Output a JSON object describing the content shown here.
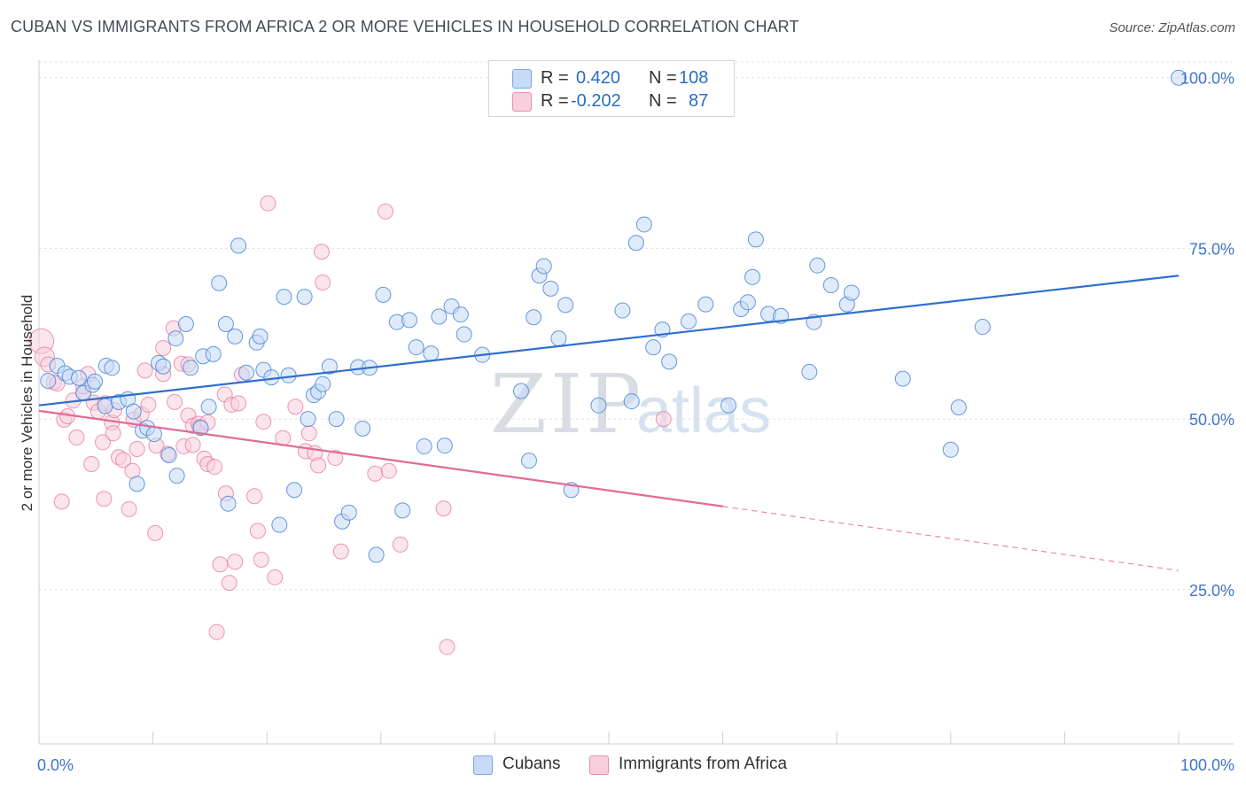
{
  "header": {
    "title": "CUBAN VS IMMIGRANTS FROM AFRICA 2 OR MORE VEHICLES IN HOUSEHOLD CORRELATION CHART",
    "source": "Source: ZipAtlas.com"
  },
  "legend_box": {
    "rows": [
      {
        "r_label": "R =",
        "r_value": "0.420",
        "n_label": "N =",
        "n_value": "108"
      },
      {
        "r_label": "R =",
        "r_value": "-0.202",
        "n_label": "N =",
        "n_value": "87"
      }
    ]
  },
  "bottom_legend": {
    "series1": "Cubans",
    "series2": "Immigrants from Africa"
  },
  "watermark": {
    "zip": "ZIP",
    "atlas": "atlas"
  },
  "colors": {
    "blue": "#4a86d8",
    "blue_fill": "#c7daf6",
    "pink": "#e8739c",
    "pink_fill": "#f8cfdd",
    "trend_blue": "#2e6fce",
    "trend_pink": "#e26a97",
    "axis_text": "#3f74c8"
  },
  "chart_data": {
    "type": "scatter",
    "title": "CUBAN VS IMMIGRANTS FROM AFRICA 2 OR MORE VEHICLES IN HOUSEHOLD CORRELATION CHART",
    "xlabel": "",
    "ylabel": "2 or more Vehicles in Household",
    "xlim": [
      0,
      100
    ],
    "ylim": [
      2.4,
      102.3
    ],
    "x_tick_labels": [
      "0.0%",
      "100.0%"
    ],
    "y_ticks": [
      25,
      50,
      75,
      100
    ],
    "y_tick_labels": [
      "25.0%",
      "50.0%",
      "75.0%",
      "100.0%"
    ],
    "grid": "horizontal dashed",
    "legend": "top-center",
    "series": [
      {
        "name": "Cubans",
        "R": 0.42,
        "N": 108,
        "trend": {
          "x": [
            0,
            100
          ],
          "y": [
            52.0,
            71.0
          ]
        },
        "points": [
          [
            0.8,
            55.6
          ],
          [
            1.6,
            57.8
          ],
          [
            2.3,
            56.7
          ],
          [
            2.7,
            56.2
          ],
          [
            3.5,
            56.0
          ],
          [
            3.9,
            53.8
          ],
          [
            4.7,
            55.0
          ],
          [
            4.9,
            55.5
          ],
          [
            5.8,
            51.9
          ],
          [
            5.9,
            57.8
          ],
          [
            6.4,
            57.5
          ],
          [
            7.0,
            52.5
          ],
          [
            7.8,
            52.9
          ],
          [
            8.3,
            51.1
          ],
          [
            8.6,
            40.5
          ],
          [
            9.1,
            48.3
          ],
          [
            9.5,
            48.7
          ],
          [
            10.1,
            47.8
          ],
          [
            10.5,
            58.2
          ],
          [
            10.9,
            57.7
          ],
          [
            11.4,
            44.7
          ],
          [
            12.0,
            61.8
          ],
          [
            12.1,
            41.7
          ],
          [
            12.9,
            63.9
          ],
          [
            13.3,
            57.5
          ],
          [
            14.2,
            48.7
          ],
          [
            14.4,
            59.2
          ],
          [
            14.9,
            51.8
          ],
          [
            15.3,
            59.5
          ],
          [
            15.8,
            69.9
          ],
          [
            16.4,
            63.9
          ],
          [
            16.6,
            37.6
          ],
          [
            17.2,
            62.1
          ],
          [
            17.5,
            75.4
          ],
          [
            18.2,
            56.8
          ],
          [
            19.1,
            61.2
          ],
          [
            19.4,
            62.1
          ],
          [
            19.7,
            57.2
          ],
          [
            20.4,
            56.1
          ],
          [
            21.1,
            34.5
          ],
          [
            21.5,
            67.9
          ],
          [
            21.9,
            56.4
          ],
          [
            22.4,
            39.6
          ],
          [
            23.3,
            67.9
          ],
          [
            23.6,
            50.0
          ],
          [
            24.1,
            53.5
          ],
          [
            24.5,
            54.0
          ],
          [
            24.9,
            55.1
          ],
          [
            25.5,
            57.7
          ],
          [
            26.1,
            50.0
          ],
          [
            26.6,
            35.0
          ],
          [
            27.2,
            36.3
          ],
          [
            28.0,
            57.6
          ],
          [
            28.4,
            48.6
          ],
          [
            29.0,
            57.5
          ],
          [
            29.6,
            30.1
          ],
          [
            30.2,
            68.2
          ],
          [
            31.4,
            64.2
          ],
          [
            31.9,
            36.6
          ],
          [
            32.5,
            64.5
          ],
          [
            33.1,
            60.5
          ],
          [
            33.8,
            46.0
          ],
          [
            34.4,
            59.6
          ],
          [
            35.1,
            65.0
          ],
          [
            35.6,
            46.1
          ],
          [
            36.2,
            66.5
          ],
          [
            37.0,
            65.3
          ],
          [
            37.3,
            62.4
          ],
          [
            38.9,
            59.4
          ],
          [
            42.3,
            54.1
          ],
          [
            43.0,
            43.9
          ],
          [
            43.4,
            64.9
          ],
          [
            43.9,
            71.0
          ],
          [
            44.3,
            72.4
          ],
          [
            44.9,
            69.1
          ],
          [
            45.6,
            61.8
          ],
          [
            46.2,
            66.7
          ],
          [
            46.7,
            39.6
          ],
          [
            49.1,
            52.0
          ],
          [
            51.2,
            65.9
          ],
          [
            52.0,
            52.6
          ],
          [
            52.4,
            75.8
          ],
          [
            53.1,
            78.5
          ],
          [
            53.9,
            60.5
          ],
          [
            54.7,
            63.1
          ],
          [
            55.3,
            58.4
          ],
          [
            57.0,
            64.3
          ],
          [
            58.5,
            66.8
          ],
          [
            60.5,
            52.0
          ],
          [
            61.6,
            66.1
          ],
          [
            62.2,
            67.1
          ],
          [
            62.6,
            70.8
          ],
          [
            62.9,
            76.3
          ],
          [
            64.0,
            65.4
          ],
          [
            65.1,
            65.1
          ],
          [
            67.6,
            56.9
          ],
          [
            68.0,
            64.2
          ],
          [
            68.3,
            72.5
          ],
          [
            69.5,
            69.6
          ],
          [
            70.9,
            66.8
          ],
          [
            71.3,
            68.5
          ],
          [
            75.8,
            55.9
          ],
          [
            80.0,
            45.5
          ],
          [
            80.7,
            51.7
          ],
          [
            82.8,
            63.5
          ],
          [
            100.0,
            100.0
          ]
        ]
      },
      {
        "name": "Immigrants from Africa",
        "R": -0.202,
        "N": 87,
        "trend": {
          "x": [
            0,
            60
          ],
          "y": [
            51.2,
            37.2
          ]
        },
        "trend_dashed": {
          "x": [
            60,
            100
          ],
          "y": [
            37.2,
            27.8
          ]
        },
        "points": [
          [
            0.2,
            61.4
          ],
          [
            0.5,
            59.1
          ],
          [
            0.8,
            58.0
          ],
          [
            1.3,
            55.4
          ],
          [
            1.6,
            55.2
          ],
          [
            2.0,
            37.9
          ],
          [
            2.2,
            49.9
          ],
          [
            2.5,
            50.4
          ],
          [
            3.0,
            52.7
          ],
          [
            3.3,
            47.3
          ],
          [
            3.9,
            53.9
          ],
          [
            3.9,
            54.8
          ],
          [
            4.3,
            56.6
          ],
          [
            4.8,
            52.4
          ],
          [
            4.6,
            43.4
          ],
          [
            5.2,
            51.1
          ],
          [
            5.6,
            46.6
          ],
          [
            5.7,
            38.3
          ],
          [
            5.8,
            52.3
          ],
          [
            6.4,
            49.5
          ],
          [
            6.5,
            47.9
          ],
          [
            6.6,
            51.3
          ],
          [
            7.0,
            44.4
          ],
          [
            7.4,
            44.0
          ],
          [
            7.9,
            36.8
          ],
          [
            8.2,
            42.4
          ],
          [
            8.3,
            49.9
          ],
          [
            8.6,
            45.6
          ],
          [
            9.0,
            50.7
          ],
          [
            9.3,
            57.1
          ],
          [
            9.6,
            52.1
          ],
          [
            10.3,
            46.1
          ],
          [
            10.2,
            33.3
          ],
          [
            10.9,
            60.4
          ],
          [
            10.9,
            56.6
          ],
          [
            11.3,
            44.9
          ],
          [
            11.8,
            63.3
          ],
          [
            11.9,
            52.5
          ],
          [
            12.5,
            58.1
          ],
          [
            12.7,
            46.0
          ],
          [
            13.1,
            58.0
          ],
          [
            13.1,
            50.5
          ],
          [
            13.5,
            49.0
          ],
          [
            13.5,
            46.2
          ],
          [
            14.0,
            49.3
          ],
          [
            14.1,
            48.8
          ],
          [
            14.5,
            44.2
          ],
          [
            14.8,
            49.5
          ],
          [
            14.8,
            43.4
          ],
          [
            15.4,
            43.0
          ],
          [
            15.6,
            18.8
          ],
          [
            15.9,
            28.7
          ],
          [
            16.3,
            53.6
          ],
          [
            16.4,
            39.1
          ],
          [
            16.7,
            26.0
          ],
          [
            16.9,
            52.1
          ],
          [
            17.2,
            29.1
          ],
          [
            17.5,
            52.3
          ],
          [
            17.8,
            56.5
          ],
          [
            18.9,
            38.7
          ],
          [
            19.2,
            33.6
          ],
          [
            19.5,
            29.4
          ],
          [
            19.7,
            49.6
          ],
          [
            20.1,
            81.6
          ],
          [
            20.7,
            26.8
          ],
          [
            21.4,
            47.2
          ],
          [
            22.5,
            51.8
          ],
          [
            23.4,
            45.3
          ],
          [
            23.7,
            47.9
          ],
          [
            24.2,
            45.0
          ],
          [
            24.5,
            43.2
          ],
          [
            24.8,
            74.5
          ],
          [
            24.9,
            70.0
          ],
          [
            26.0,
            44.3
          ],
          [
            26.5,
            30.6
          ],
          [
            29.5,
            42.0
          ],
          [
            30.4,
            80.4
          ],
          [
            30.7,
            42.4
          ],
          [
            31.7,
            31.6
          ],
          [
            35.5,
            36.9
          ],
          [
            35.8,
            16.6
          ],
          [
            54.8,
            50.0
          ]
        ]
      }
    ]
  },
  "x_axis": {
    "left_label": "0.0%",
    "right_label": "100.0%"
  },
  "y_axis": {
    "label": "2 or more Vehicles in Household",
    "tick_labels": [
      "100.0%",
      "75.0%",
      "50.0%",
      "25.0%"
    ]
  }
}
